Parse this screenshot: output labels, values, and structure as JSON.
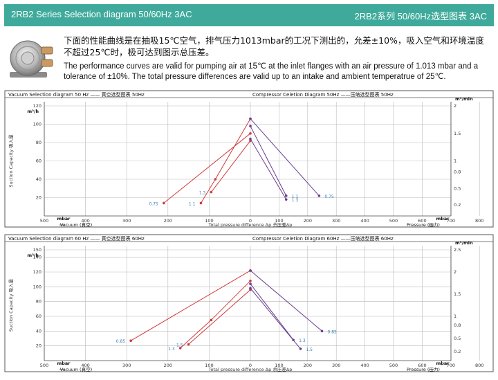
{
  "header": {
    "title_left": "2RB2  Series Selection diagram   50/60Hz  3AC",
    "title_right": "2RB2系列 50/60Hz选型图表  3AC"
  },
  "intro": {
    "zh_text": "下面的性能曲线是在抽吸15℃空气，排气压力1013mbar的工况下测出的，允差±10%，吸入空气和环境温度不超过25℃时，极可达到图示总压差。",
    "en_text": "The performance curves are valid for pumping air at 15℃ at the inlet flanges with an air pressure of 1.013 mbar and a tolerance of ±10%. The total pressure differences are valid up to an intake and ambient temperatrue of 25℃."
  },
  "colors": {
    "banner": "#3faa9c",
    "vacuum_curves": "#d23a3a",
    "compressor_curves": "#6a3d8f",
    "grid": "#b9b9b9"
  },
  "chart_data": [
    {
      "type": "line",
      "frequency": "50Hz",
      "title_vacuum": "Vacuum Selection diagram 50 Hz —— 真空选型图表 50Hz",
      "title_compressor": "Compressor Celetion Diagram 50Hz ——压缩选型图表 50Hz",
      "xlabel": "Total pressure difference Δp 总压差Δp",
      "x_unit": "mbar",
      "vacuum_label": "Vacuum (真空)",
      "pressure_label": "Pressure (压力)",
      "ylabel_left": "Suction Capacity  吸入量",
      "y_unit_left": "m³/h",
      "y_unit_right": "m³/min",
      "vacuum_xlim": [
        500,
        0
      ],
      "pressure_xlim": [
        0,
        800
      ],
      "vacuum_ticks": [
        "500",
        "400",
        "300",
        "200",
        "100",
        "0"
      ],
      "pressure_ticks": [
        "100",
        "200",
        "300",
        "400",
        "500",
        "600",
        "700",
        "800"
      ],
      "ylim_left": [
        0,
        120
      ],
      "ylim_right": [
        0,
        2
      ],
      "left_ticks": [
        "20",
        "40",
        "60",
        "80",
        "100",
        "120"
      ],
      "right_ticks": [
        "0.2",
        "0.5",
        "0.8",
        "1",
        "1.5",
        "2"
      ],
      "vacuum_series": [
        {
          "name": "0.75",
          "points": [
            [
              0,
              90
            ],
            [
              210,
              14
            ]
          ]
        },
        {
          "name": "1.1",
          "points": [
            [
              0,
              106
            ],
            [
              85,
              40
            ],
            [
              120,
              14
            ]
          ]
        },
        {
          "name": "1.3",
          "points": [
            [
              0,
              82
            ],
            [
              95,
              26
            ]
          ]
        }
      ],
      "compressor_series": [
        {
          "name": "0.75",
          "points": [
            [
              0,
              106
            ],
            [
              240,
              22
            ]
          ]
        },
        {
          "name": "1.1",
          "points": [
            [
              0,
              98
            ],
            [
              125,
              22
            ]
          ]
        },
        {
          "name": "1.3",
          "points": [
            [
              0,
              84
            ],
            [
              125,
              18
            ]
          ]
        }
      ]
    },
    {
      "type": "line",
      "frequency": "60Hz",
      "title_vacuum": "Vacuum Selection diagram 60 Hz —— 真空选型图表 60Hz",
      "title_compressor": "Compressor Celetion Diagram 60Hz ——压缩选型图表 60Hz",
      "xlabel": "Total pressure difference Δp 总压差Δp",
      "x_unit": "mbar",
      "vacuum_label": "Vacuum (真空)",
      "pressure_label": "Pressure (压力)",
      "ylabel_left": "Suction Capacity  吸入量",
      "y_unit_left": "m³/h",
      "y_unit_right": "m³/min",
      "vacuum_xlim": [
        500,
        0
      ],
      "pressure_xlim": [
        0,
        800
      ],
      "vacuum_ticks": [
        "500",
        "400",
        "300",
        "200",
        "100",
        "0"
      ],
      "pressure_ticks": [
        "100",
        "200",
        "300",
        "400",
        "500",
        "600",
        "700",
        "800"
      ],
      "ylim_left": [
        0,
        150
      ],
      "ylim_right": [
        0,
        2.5
      ],
      "left_ticks": [
        "20",
        "40",
        "60",
        "80",
        "100",
        "120",
        "140",
        "150"
      ],
      "right_ticks": [
        "0.2",
        "0.5",
        "0.8",
        "1",
        "1.5",
        "2",
        "2.5"
      ],
      "vacuum_series": [
        {
          "name": "0.85",
          "points": [
            [
              0,
              122
            ],
            [
              290,
              27
            ]
          ]
        },
        {
          "name": "1.3",
          "points": [
            [
              0,
              108
            ],
            [
              95,
              55
            ],
            [
              170,
              17
            ]
          ]
        },
        {
          "name": "1.5",
          "points": [
            [
              0,
              96
            ],
            [
              150,
              22
            ]
          ]
        }
      ],
      "compressor_series": [
        {
          "name": "0.85",
          "points": [
            [
              0,
              122
            ],
            [
              250,
              40
            ]
          ]
        },
        {
          "name": "1.3",
          "points": [
            [
              0,
              104
            ],
            [
              150,
              28
            ]
          ]
        },
        {
          "name": "1.5",
          "points": [
            [
              0,
              98
            ],
            [
              175,
              16
            ]
          ]
        }
      ]
    }
  ]
}
